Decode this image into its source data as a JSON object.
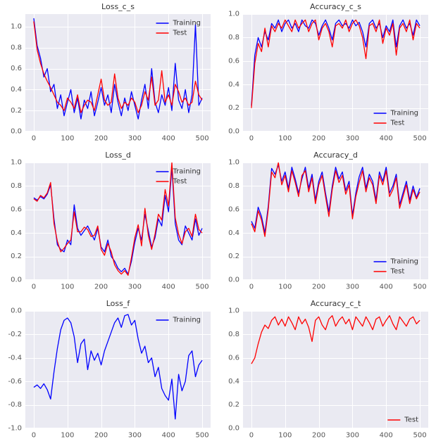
{
  "style": {
    "figure_bg": "#ffffff",
    "axes_bg": "#eaeaf2",
    "grid_color": "#ffffff",
    "tick_color": "#555555",
    "title_color": "#333333",
    "legend_text_color": "#333333"
  },
  "chart_data": [
    {
      "type": "line",
      "title": "Loss_c_s",
      "xlim": [
        -25,
        525
      ],
      "ylim": [
        0.0,
        1.12
      ],
      "xticks": [
        0,
        100,
        200,
        300,
        400,
        500
      ],
      "xtick_labels": [
        "0",
        "100",
        "200",
        "300",
        "400",
        "500"
      ],
      "yticks": [
        0.0,
        0.2,
        0.4,
        0.6,
        0.8,
        1.0
      ],
      "ytick_labels": [
        "0.0",
        "0.2",
        "0.4",
        "0.6",
        "0.8",
        "1.0"
      ],
      "x_start": 0,
      "x_step": 10,
      "legend": {
        "position": "upper right"
      },
      "series": [
        {
          "name": "Training",
          "color": "#0000ff",
          "values": [
            1.08,
            0.82,
            0.7,
            0.52,
            0.6,
            0.38,
            0.45,
            0.22,
            0.35,
            0.15,
            0.28,
            0.4,
            0.18,
            0.32,
            0.12,
            0.3,
            0.22,
            0.38,
            0.15,
            0.28,
            0.42,
            0.25,
            0.35,
            0.18,
            0.45,
            0.28,
            0.15,
            0.32,
            0.2,
            0.38,
            0.25,
            0.12,
            0.3,
            0.45,
            0.22,
            0.6,
            0.28,
            0.18,
            0.35,
            0.25,
            0.42,
            0.2,
            0.65,
            0.3,
            0.22,
            0.4,
            0.18,
            0.35,
            1.02,
            0.25,
            0.32
          ]
        },
        {
          "name": "Test",
          "color": "#ff0000",
          "values": [
            1.05,
            0.78,
            0.65,
            0.55,
            0.48,
            0.42,
            0.35,
            0.28,
            0.25,
            0.2,
            0.32,
            0.28,
            0.22,
            0.35,
            0.18,
            0.25,
            0.3,
            0.28,
            0.2,
            0.35,
            0.5,
            0.3,
            0.25,
            0.28,
            0.55,
            0.32,
            0.22,
            0.28,
            0.25,
            0.32,
            0.28,
            0.18,
            0.25,
            0.38,
            0.3,
            0.52,
            0.25,
            0.3,
            0.58,
            0.28,
            0.35,
            0.25,
            0.45,
            0.38,
            0.28,
            0.32,
            0.25,
            0.28,
            0.48,
            0.35,
            0.3
          ]
        }
      ]
    },
    {
      "type": "line",
      "title": "Accuracy_c_s",
      "xlim": [
        -25,
        525
      ],
      "ylim": [
        0.0,
        1.0
      ],
      "xticks": [
        0,
        100,
        200,
        300,
        400,
        500
      ],
      "xtick_labels": [
        "0",
        "100",
        "200",
        "300",
        "400",
        "500"
      ],
      "yticks": [
        0.0,
        0.2,
        0.4,
        0.6,
        0.8,
        1.0
      ],
      "ytick_labels": [
        "0.0",
        "0.2",
        "0.4",
        "0.6",
        "0.8",
        "1.0"
      ],
      "x_start": 0,
      "x_step": 10,
      "legend": {
        "position": "lower right"
      },
      "series": [
        {
          "name": "Training",
          "color": "#0000ff",
          "values": [
            0.22,
            0.65,
            0.8,
            0.72,
            0.85,
            0.78,
            0.92,
            0.88,
            0.95,
            0.85,
            0.92,
            0.95,
            0.88,
            0.92,
            0.85,
            0.95,
            0.9,
            0.88,
            0.95,
            0.92,
            0.82,
            0.9,
            0.95,
            0.88,
            0.78,
            0.92,
            0.95,
            0.9,
            0.92,
            0.88,
            0.95,
            0.9,
            0.93,
            0.85,
            0.72,
            0.92,
            0.95,
            0.88,
            0.92,
            0.8,
            0.9,
            0.85,
            0.95,
            0.72,
            0.9,
            0.95,
            0.88,
            0.92,
            0.82,
            0.95,
            0.9
          ]
        },
        {
          "name": "Test",
          "color": "#ff0000",
          "values": [
            0.2,
            0.58,
            0.75,
            0.68,
            0.88,
            0.72,
            0.9,
            0.85,
            0.92,
            0.88,
            0.95,
            0.9,
            0.85,
            0.95,
            0.88,
            0.92,
            0.95,
            0.85,
            0.92,
            0.95,
            0.78,
            0.88,
            0.92,
            0.85,
            0.72,
            0.9,
            0.92,
            0.88,
            0.95,
            0.85,
            0.92,
            0.95,
            0.9,
            0.8,
            0.62,
            0.9,
            0.92,
            0.85,
            0.95,
            0.75,
            0.88,
            0.82,
            0.92,
            0.65,
            0.88,
            0.92,
            0.85,
            0.95,
            0.78,
            0.92,
            0.88
          ]
        }
      ]
    },
    {
      "type": "line",
      "title": "Loss_d",
      "xlim": [
        -25,
        525
      ],
      "ylim": [
        0.0,
        1.0
      ],
      "xticks": [
        0,
        100,
        200,
        300,
        400,
        500
      ],
      "xtick_labels": [
        "0",
        "100",
        "200",
        "300",
        "400",
        "500"
      ],
      "yticks": [
        0.0,
        0.2,
        0.4,
        0.6,
        0.8,
        1.0
      ],
      "ytick_labels": [
        "0.0",
        "0.2",
        "0.4",
        "0.6",
        "0.8",
        "1.0"
      ],
      "x_start": 0,
      "x_step": 10,
      "legend": {
        "position": "upper right"
      },
      "series": [
        {
          "name": "Training",
          "color": "#0000ff",
          "values": [
            0.7,
            0.68,
            0.71,
            0.69,
            0.73,
            0.81,
            0.52,
            0.3,
            0.26,
            0.24,
            0.34,
            0.3,
            0.64,
            0.44,
            0.38,
            0.42,
            0.46,
            0.4,
            0.34,
            0.44,
            0.28,
            0.24,
            0.34,
            0.2,
            0.16,
            0.1,
            0.07,
            0.1,
            0.05,
            0.16,
            0.32,
            0.44,
            0.34,
            0.56,
            0.42,
            0.28,
            0.36,
            0.52,
            0.46,
            0.72,
            0.58,
            0.96,
            0.48,
            0.34,
            0.3,
            0.46,
            0.4,
            0.34,
            0.52,
            0.38,
            0.44
          ]
        },
        {
          "name": "Test",
          "color": "#ff0000",
          "values": [
            0.69,
            0.67,
            0.72,
            0.7,
            0.74,
            0.83,
            0.48,
            0.33,
            0.24,
            0.27,
            0.31,
            0.34,
            0.58,
            0.41,
            0.41,
            0.45,
            0.43,
            0.37,
            0.38,
            0.46,
            0.26,
            0.21,
            0.31,
            0.24,
            0.13,
            0.08,
            0.05,
            0.08,
            0.04,
            0.19,
            0.36,
            0.47,
            0.29,
            0.61,
            0.38,
            0.26,
            0.39,
            0.56,
            0.51,
            0.77,
            0.63,
            1.0,
            0.53,
            0.39,
            0.31,
            0.41,
            0.44,
            0.37,
            0.56,
            0.43,
            0.4
          ]
        }
      ]
    },
    {
      "type": "line",
      "title": "Accuracy_d",
      "xlim": [
        -25,
        525
      ],
      "ylim": [
        0.0,
        1.0
      ],
      "xticks": [
        0,
        100,
        200,
        300,
        400,
        500
      ],
      "xtick_labels": [
        "0",
        "100",
        "200",
        "300",
        "400",
        "500"
      ],
      "yticks": [
        0.0,
        0.2,
        0.4,
        0.6,
        0.8,
        1.0
      ],
      "ytick_labels": [
        "0.0",
        "0.2",
        "0.4",
        "0.6",
        "0.8",
        "1.0"
      ],
      "x_start": 0,
      "x_step": 10,
      "legend": {
        "position": "lower right"
      },
      "series": [
        {
          "name": "Training",
          "color": "#0000ff",
          "values": [
            0.5,
            0.44,
            0.62,
            0.54,
            0.4,
            0.63,
            0.95,
            0.9,
            0.98,
            0.84,
            0.92,
            0.78,
            0.96,
            0.86,
            0.74,
            0.86,
            0.96,
            0.78,
            0.9,
            0.68,
            0.84,
            0.92,
            0.74,
            0.58,
            0.8,
            0.96,
            0.86,
            0.92,
            0.76,
            0.84,
            0.55,
            0.74,
            0.88,
            0.96,
            0.78,
            0.9,
            0.84,
            0.68,
            0.92,
            0.84,
            0.96,
            0.74,
            0.8,
            0.9,
            0.64,
            0.74,
            0.84,
            0.68,
            0.8,
            0.7,
            0.78
          ]
        },
        {
          "name": "Test",
          "color": "#ff0000",
          "values": [
            0.48,
            0.41,
            0.59,
            0.51,
            0.37,
            0.6,
            0.92,
            0.87,
            1.0,
            0.81,
            0.89,
            0.75,
            0.93,
            0.83,
            0.71,
            0.89,
            0.93,
            0.75,
            0.87,
            0.65,
            0.81,
            0.89,
            0.71,
            0.54,
            0.77,
            0.93,
            0.83,
            0.89,
            0.73,
            0.81,
            0.52,
            0.71,
            0.83,
            0.93,
            0.75,
            0.87,
            0.81,
            0.65,
            0.89,
            0.81,
            0.93,
            0.71,
            0.77,
            0.87,
            0.61,
            0.71,
            0.81,
            0.65,
            0.77,
            0.69,
            0.75
          ]
        }
      ]
    },
    {
      "type": "line",
      "title": "Loss_f",
      "xlim": [
        -25,
        525
      ],
      "ylim": [
        -1.0,
        0.0
      ],
      "xticks": [
        0,
        100,
        200,
        300,
        400,
        500
      ],
      "xtick_labels": [
        "0",
        "100",
        "200",
        "300",
        "400",
        "500"
      ],
      "yticks": [
        -1.0,
        -0.8,
        -0.6,
        -0.4,
        -0.2,
        0.0
      ],
      "ytick_labels": [
        "-1.0",
        "-0.8",
        "-0.6",
        "-0.4",
        "-0.2",
        "0.0"
      ],
      "x_start": 0,
      "x_step": 10,
      "legend": {
        "position": "upper right"
      },
      "series": [
        {
          "name": "Training",
          "color": "#0000ff",
          "values": [
            -0.65,
            -0.63,
            -0.66,
            -0.62,
            -0.67,
            -0.75,
            -0.52,
            -0.32,
            -0.16,
            -0.08,
            -0.06,
            -0.1,
            -0.22,
            -0.44,
            -0.28,
            -0.24,
            -0.5,
            -0.34,
            -0.42,
            -0.36,
            -0.46,
            -0.34,
            -0.26,
            -0.18,
            -0.1,
            -0.06,
            -0.14,
            -0.04,
            -0.03,
            -0.12,
            -0.08,
            -0.24,
            -0.36,
            -0.3,
            -0.44,
            -0.4,
            -0.56,
            -0.48,
            -0.66,
            -0.72,
            -0.76,
            -0.58,
            -0.92,
            -0.54,
            -0.68,
            -0.6,
            -0.38,
            -0.34,
            -0.56,
            -0.46,
            -0.42
          ]
        }
      ]
    },
    {
      "type": "line",
      "title": "Accuracy_c_t",
      "xlim": [
        -25,
        525
      ],
      "ylim": [
        0.0,
        1.0
      ],
      "xticks": [
        0,
        100,
        200,
        300,
        400,
        500
      ],
      "xtick_labels": [
        "0",
        "100",
        "200",
        "300",
        "400",
        "500"
      ],
      "yticks": [
        0.0,
        0.2,
        0.4,
        0.6,
        0.8,
        1.0
      ],
      "ytick_labels": [
        "0.0",
        "0.2",
        "0.4",
        "0.6",
        "0.8",
        "1.0"
      ],
      "x_start": 0,
      "x_step": 10,
      "legend": {
        "position": "lower right"
      },
      "series": [
        {
          "name": "Test",
          "color": "#ff0000",
          "values": [
            0.55,
            0.6,
            0.72,
            0.82,
            0.88,
            0.85,
            0.92,
            0.95,
            0.88,
            0.93,
            0.87,
            0.95,
            0.9,
            0.84,
            0.95,
            0.89,
            0.93,
            0.86,
            0.74,
            0.92,
            0.95,
            0.88,
            0.84,
            0.93,
            0.96,
            0.87,
            0.92,
            0.95,
            0.89,
            0.93,
            0.84,
            0.95,
            0.91,
            0.87,
            0.95,
            0.9,
            0.84,
            0.93,
            0.95,
            0.87,
            0.92,
            0.96,
            0.89,
            0.84,
            0.95,
            0.91,
            0.87,
            0.93,
            0.95,
            0.89,
            0.92
          ]
        }
      ]
    }
  ]
}
